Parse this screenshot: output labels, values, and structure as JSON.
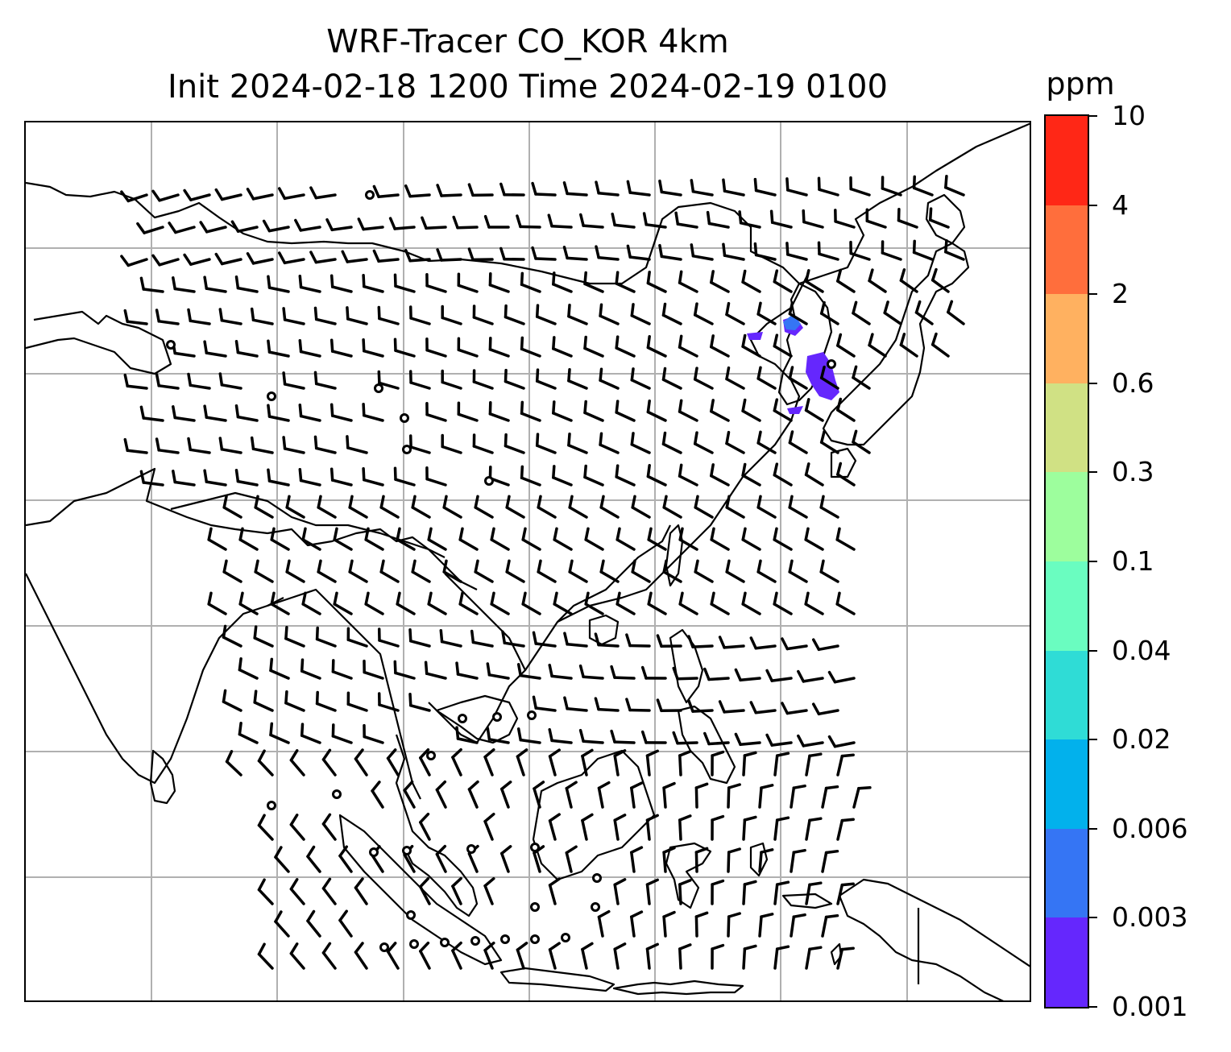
{
  "title": {
    "line1": "WRF-Tracer CO_KOR 4km",
    "line2": "Init 2024-02-18 1200 Time 2024-02-19 0100"
  },
  "colorbar": {
    "label": "ppm",
    "levels": [
      "0.001",
      "0.003",
      "0.006",
      "0.02",
      "0.04",
      "0.1",
      "0.3",
      "0.6",
      "2",
      "4",
      "10"
    ],
    "colors": [
      "#6527fd",
      "#3575f4",
      "#02b1ec",
      "#2fdcd6",
      "#6afdc0",
      "#9dfe9d",
      "#d0e184",
      "#ffb160",
      "#ff6e3c",
      "#ff2716"
    ]
  },
  "map": {
    "gridlines": "on",
    "grid_color": "#b0b0b0",
    "coastline_color": "#000000",
    "features": [
      "coastlines",
      "country borders",
      "wind barbs",
      "calm-wind circles",
      "CO tracer concentration contours"
    ],
    "tracer_fill_color": "#6527fd",
    "tracer_core_color": "#3575f4"
  }
}
